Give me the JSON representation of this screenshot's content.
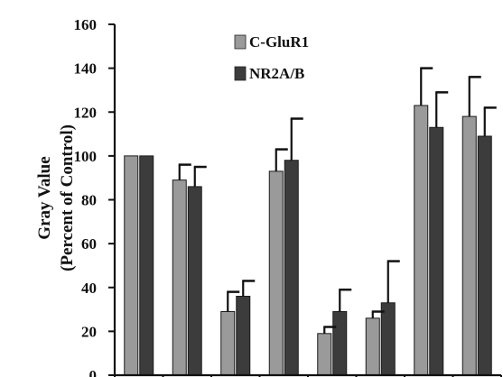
{
  "chart_data": {
    "type": "bar",
    "title": "",
    "xlabel": "",
    "ylabel_lines": [
      "Gray Value",
      "(Percent of Control)"
    ],
    "ylim": [
      0,
      160
    ],
    "yticks": [
      0,
      20,
      40,
      60,
      80,
      100,
      120,
      140,
      160
    ],
    "categories": [
      "",
      "",
      "",
      "",
      "",
      "",
      "",
      ""
    ],
    "legend_position": "top-center",
    "series": [
      {
        "name": "C-GluR1",
        "color": "#9a9a9a",
        "values": [
          100,
          89,
          29,
          93,
          19,
          26,
          123,
          118
        ],
        "errors": [
          0,
          7,
          9,
          10,
          3,
          3,
          17,
          18
        ]
      },
      {
        "name": "NR2A/B",
        "color": "#3c3c3c",
        "values": [
          100,
          86,
          36,
          98,
          29,
          33,
          113,
          109
        ],
        "errors": [
          0,
          9,
          7,
          19,
          10,
          19,
          16,
          13
        ]
      }
    ]
  }
}
